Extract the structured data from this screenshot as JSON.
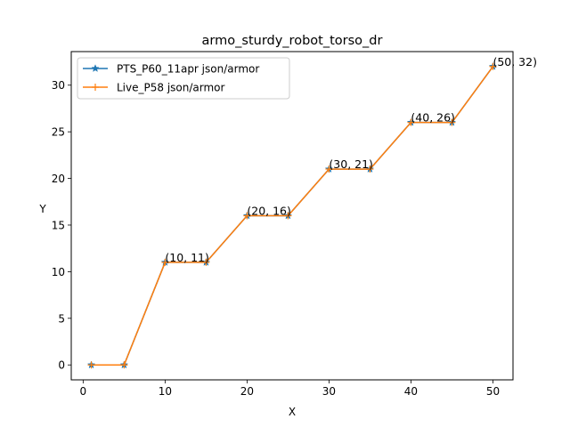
{
  "chart_data": {
    "type": "line",
    "title": "armo_sturdy_robot_torso_dr",
    "xlabel": "X",
    "ylabel": "Y",
    "xlim": [
      -1.45,
      52.45
    ],
    "ylim": [
      -1.6,
      33.6
    ],
    "xticks": [
      0,
      10,
      20,
      30,
      40,
      50
    ],
    "yticks": [
      0,
      5,
      10,
      15,
      20,
      25,
      30
    ],
    "legend_position": "top-left",
    "grid": false,
    "series": [
      {
        "name": "PTS_P60_11apr json/armor",
        "color": "#1f77b4",
        "marker": "star",
        "x": [
          1,
          5,
          10,
          15,
          20,
          25,
          30,
          35,
          40,
          45,
          50
        ],
        "y": [
          0,
          0,
          11,
          11,
          16,
          16,
          21,
          21,
          26,
          26,
          32
        ]
      },
      {
        "name": "Live_P58 json/armor",
        "color": "#ff7f0e",
        "marker": "plus",
        "x": [
          1,
          5,
          10,
          15,
          20,
          25,
          30,
          35,
          40,
          45,
          50
        ],
        "y": [
          0,
          0,
          11,
          11,
          16,
          16,
          21,
          21,
          26,
          26,
          32
        ]
      }
    ],
    "annotations": [
      {
        "text": "(10, 11)",
        "x": 10,
        "y": 11
      },
      {
        "text": "(20, 16)",
        "x": 20,
        "y": 16
      },
      {
        "text": "(30, 21)",
        "x": 30,
        "y": 21
      },
      {
        "text": "(40, 26)",
        "x": 40,
        "y": 26
      },
      {
        "text": "(50, 32)",
        "x": 50,
        "y": 32
      }
    ]
  }
}
